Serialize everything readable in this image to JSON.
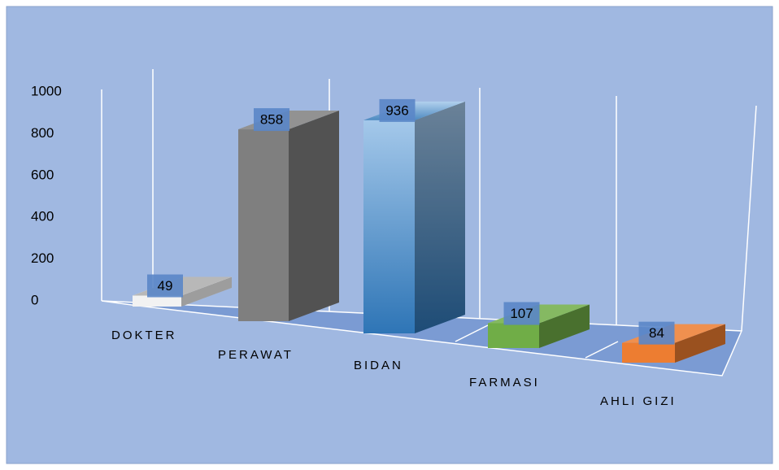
{
  "chart_data": {
    "type": "bar3d",
    "categories": [
      "DOKTER",
      "PERAWAT",
      "BIDAN",
      "FARMASI",
      "AHLI GIZI"
    ],
    "values": [
      49,
      858,
      936,
      107,
      84
    ],
    "colors": [
      "#f2f2f2",
      "#7f7f7f",
      "#5b9bd5",
      "#70ad47",
      "#ed7d31"
    ],
    "ylim": [
      0,
      1000
    ],
    "yticks": [
      0,
      200,
      400,
      600,
      800,
      1000
    ]
  }
}
